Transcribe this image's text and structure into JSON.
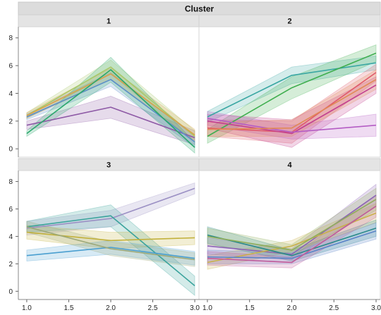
{
  "chart_data": {
    "type": "line",
    "title": "Cluster",
    "xlabel": "",
    "ylabel": "",
    "xlim": [
      0.9,
      3.05
    ],
    "ylim": [
      -0.6,
      8.8
    ],
    "x_ticks": [
      1.0,
      1.5,
      2.0,
      2.5,
      3.0
    ],
    "x_tick_labels": [
      "1.0",
      "1.5",
      "2.0",
      "2.5",
      "3.0"
    ],
    "y_ticks": [
      0,
      2,
      4,
      6,
      8
    ],
    "y_tick_labels": [
      "0",
      "2",
      "4",
      "6",
      "8"
    ],
    "x": [
      1.0,
      2.0,
      3.0
    ],
    "panels": [
      {
        "label": "1",
        "series": [
          {
            "color": "#8e5aa6",
            "values": [
              1.7,
              3.0,
              0.8
            ],
            "band": [
              0.3,
              0.8,
              0.5
            ]
          },
          {
            "color": "#a9c96a",
            "values": [
              2.4,
              5.9,
              0.9
            ],
            "band": [
              0.2,
              0.5,
              0.4
            ]
          },
          {
            "color": "#5b8fc8",
            "values": [
              2.3,
              5.0,
              0.5
            ],
            "band": [
              0.2,
              0.5,
              0.4
            ]
          },
          {
            "color": "#d8a24a",
            "values": [
              2.4,
              5.4,
              1.0
            ],
            "band": [
              0.2,
              0.4,
              0.4
            ]
          },
          {
            "color": "#2aa86c",
            "values": [
              1.1,
              5.7,
              0.1
            ],
            "band": [
              0.2,
              0.9,
              0.4
            ]
          }
        ]
      },
      {
        "label": "2",
        "series": [
          {
            "color": "#3aa7a3",
            "values": [
              2.3,
              5.3,
              6.2
            ],
            "band": [
              0.4,
              0.6,
              0.5
            ]
          },
          {
            "color": "#3fae4f",
            "values": [
              0.9,
              4.4,
              6.9
            ],
            "band": [
              0.5,
              0.8,
              0.6
            ]
          },
          {
            "color": "#e05a6a",
            "values": [
              1.5,
              1.2,
              5.5
            ],
            "band": [
              0.6,
              0.8,
              0.6
            ]
          },
          {
            "color": "#c3408f",
            "values": [
              2.0,
              1.1,
              4.6
            ],
            "band": [
              0.5,
              1.0,
              0.6
            ]
          },
          {
            "color": "#b45cc4",
            "values": [
              2.2,
              1.2,
              1.7
            ],
            "band": [
              0.5,
              0.5,
              0.8
            ]
          },
          {
            "color": "#e08a55",
            "values": [
              1.4,
              1.5,
              5.0
            ],
            "band": [
              0.5,
              0.6,
              0.7
            ]
          }
        ]
      },
      {
        "label": "3",
        "series": [
          {
            "color": "#9b90c4",
            "values": [
              4.6,
              5.3,
              7.5
            ],
            "band": [
              0.5,
              0.6,
              0.4
            ]
          },
          {
            "color": "#3aa39c",
            "values": [
              4.7,
              5.5,
              0.4
            ],
            "band": [
              0.4,
              0.8,
              0.7
            ]
          },
          {
            "color": "#c2b13c",
            "values": [
              4.3,
              3.7,
              3.9
            ],
            "band": [
              0.5,
              0.6,
              0.5
            ]
          },
          {
            "color": "#4a9fd0",
            "values": [
              2.6,
              3.2,
              2.4
            ],
            "band": [
              0.4,
              0.5,
              0.5
            ]
          },
          {
            "color": "#9ca878",
            "values": [
              4.7,
              3.1,
              2.3
            ],
            "band": [
              0.4,
              0.5,
              0.5
            ]
          }
        ]
      },
      {
        "label": "4",
        "series": [
          {
            "color": "#8c63b6",
            "values": [
              3.3,
              2.7,
              7.0
            ],
            "band": [
              0.6,
              0.4,
              0.8
            ]
          },
          {
            "color": "#c9b04a",
            "values": [
              2.1,
              3.3,
              5.7
            ],
            "band": [
              0.5,
              0.4,
              0.7
            ]
          },
          {
            "color": "#2a8a8a",
            "values": [
              4.1,
              2.6,
              4.6
            ],
            "band": [
              0.6,
              0.4,
              0.6
            ]
          },
          {
            "color": "#5b84c8",
            "values": [
              2.5,
              2.4,
              4.4
            ],
            "band": [
              0.5,
              0.4,
              0.6
            ]
          },
          {
            "color": "#c05a9a",
            "values": [
              2.4,
              2.1,
              6.2
            ],
            "band": [
              0.5,
              0.4,
              0.8
            ]
          },
          {
            "color": "#8fae5a",
            "values": [
              4.0,
              3.0,
              6.7
            ],
            "band": [
              0.6,
              0.4,
              0.8
            ]
          }
        ]
      }
    ]
  }
}
